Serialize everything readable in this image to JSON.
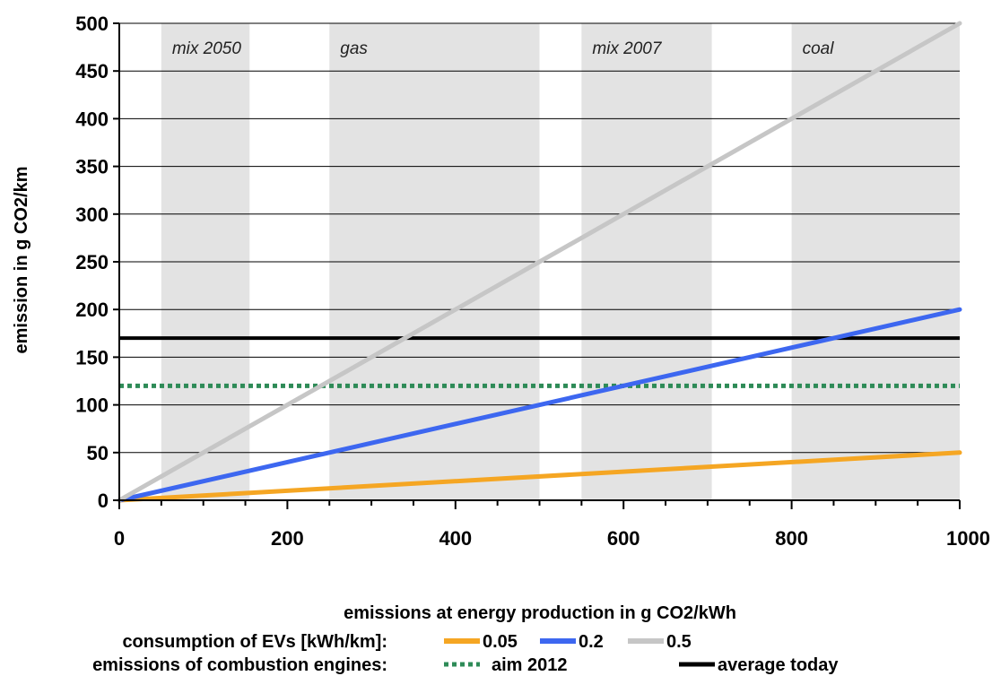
{
  "chart_data": {
    "type": "line",
    "title": "",
    "xlabel": "emissions at energy production in g CO2/kWh",
    "ylabel": "emission in g CO2/km",
    "xlim": [
      0,
      1000
    ],
    "ylim": [
      0,
      500
    ],
    "x_ticks": [
      0,
      200,
      400,
      600,
      800,
      1000
    ],
    "y_ticks": [
      0,
      50,
      100,
      150,
      200,
      250,
      300,
      350,
      400,
      450,
      500
    ],
    "grid": "horizontal",
    "bands": [
      {
        "label": "mix 2050",
        "x": [
          50,
          155
        ]
      },
      {
        "label": "gas",
        "x": [
          250,
          500
        ]
      },
      {
        "label": "mix 2007",
        "x": [
          550,
          705
        ]
      },
      {
        "label": "coal",
        "x": [
          800,
          1000
        ]
      }
    ],
    "series": [
      {
        "name": "0.05",
        "color": "#f5a623",
        "style": "solid",
        "x": [
          0,
          1000
        ],
        "y": [
          0,
          50
        ]
      },
      {
        "name": "0.2",
        "color": "#3d67f0",
        "style": "solid",
        "x": [
          0,
          1000
        ],
        "y": [
          0,
          200
        ]
      },
      {
        "name": "0.5",
        "color": "#c6c6c6",
        "style": "solid",
        "x": [
          0,
          1000
        ],
        "y": [
          0,
          500
        ]
      }
    ],
    "reference_lines": [
      {
        "name": "aim 2012",
        "y": 120,
        "color": "#2e8b57",
        "style": "dotted"
      },
      {
        "name": "average today",
        "y": 170,
        "color": "#000000",
        "style": "solid"
      }
    ],
    "legend": {
      "row1_label": "consumption of EVs [kWh/km]:",
      "row2_label": "emissions of combustion engines:",
      "items": [
        "0.05",
        "0.2",
        "0.5",
        "aim 2012",
        "average today"
      ]
    }
  }
}
